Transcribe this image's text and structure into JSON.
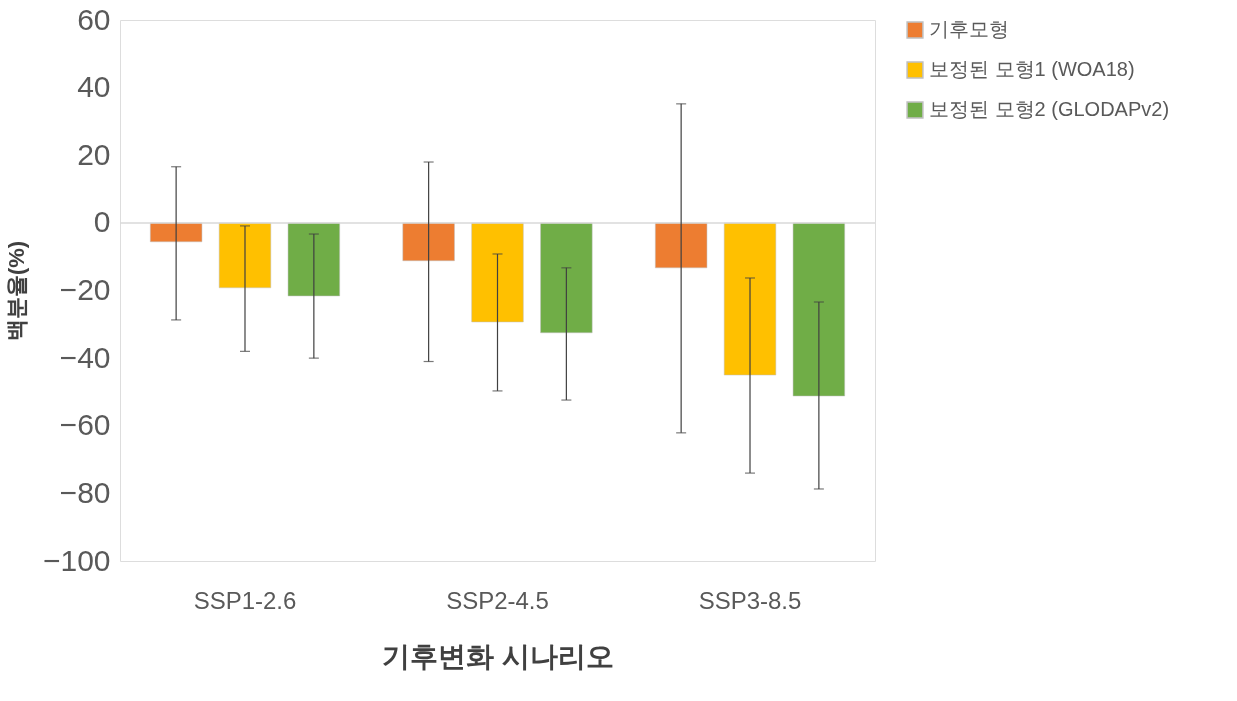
{
  "chart_data": {
    "type": "bar",
    "xlabel": "기후변화 시나리오",
    "ylabel": "백분율(%)",
    "categories": [
      "SSP1-2.6",
      "SSP2-4.5",
      "SSP3-8.5"
    ],
    "series": [
      {
        "name": "기후모형",
        "color": "#ed7d31",
        "values": [
          -5.6,
          -11.2,
          -13.3
        ],
        "errors": [
          [
            -28.7,
            16.6
          ],
          [
            -41,
            18
          ],
          [
            -62.1,
            35.2
          ]
        ]
      },
      {
        "name": "보정된 모형1 (WOA18)",
        "color": "#ffc000",
        "values": [
          -19.2,
          -29.3,
          -45
        ],
        "errors": [
          [
            -38,
            -0.9
          ],
          [
            -49.7,
            -9.2
          ],
          [
            -74,
            -16.3
          ]
        ]
      },
      {
        "name": "보정된 모형2 (GLODAPv2)",
        "color": "#70ad47",
        "values": [
          -21.6,
          -32.5,
          -51.2
        ],
        "errors": [
          [
            -40,
            -3.3
          ],
          [
            -52.4,
            -13.3
          ],
          [
            -78.7,
            -23.4
          ]
        ]
      }
    ],
    "ylim": [
      -100,
      60
    ],
    "yticks": [
      -100,
      -80,
      -60,
      -40,
      -20,
      0,
      20,
      40,
      60
    ],
    "ref_lines": [
      {
        "axis": "y",
        "value": 0,
        "color": "#d9d9d9"
      }
    ],
    "grid": false,
    "legend": "right"
  }
}
